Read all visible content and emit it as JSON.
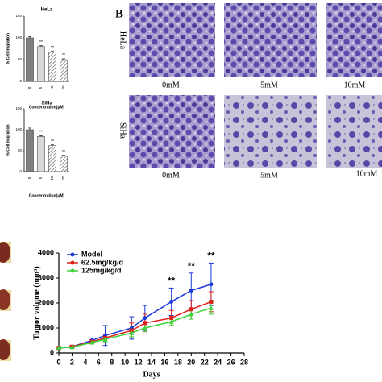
{
  "chart_data": [
    {
      "type": "bar",
      "title": "HeLa",
      "x_label": "Concentration(μM)",
      "y_label": "% Cell migration",
      "categories": [
        "0",
        "5",
        "10",
        "20"
      ],
      "values": [
        100,
        80,
        68,
        50
      ],
      "errors": [
        3,
        2,
        2,
        2
      ],
      "colors": [
        "#808080",
        "#d9d9d9",
        "#ffffff",
        "#ffffff"
      ],
      "hatched": [
        false,
        false,
        true,
        true
      ],
      "significance": [
        null,
        "**",
        "**",
        "**"
      ],
      "ylim": [
        0,
        150
      ],
      "yticks": [
        0,
        50,
        100,
        150
      ]
    },
    {
      "type": "bar",
      "title": "SiHa",
      "x_label": "Concentration(μM)",
      "y_label": "% Cell migration",
      "categories": [
        "0",
        "5",
        "10",
        "20"
      ],
      "values": [
        100,
        84,
        62,
        37
      ],
      "errors": [
        4,
        2,
        2,
        2
      ],
      "colors": [
        "#808080",
        "#d9d9d9",
        "#ffffff",
        "#ffffff"
      ],
      "hatched": [
        false,
        false,
        true,
        true
      ],
      "significance": [
        null,
        "**",
        "**",
        "**"
      ],
      "ylim": [
        0,
        150
      ],
      "yticks": [
        0,
        50,
        100,
        150
      ]
    },
    {
      "type": "line",
      "x_label": "Days",
      "y_label": "Tumor volume (mm³)",
      "x": [
        0,
        2,
        5,
        7,
        11,
        13,
        17,
        20,
        23
      ],
      "series": [
        {
          "name": "Model",
          "color": "#1a3ad6",
          "values": [
            200,
            250,
            500,
            700,
            1000,
            1400,
            2050,
            2500,
            2750
          ],
          "errors": [
            50,
            50,
            100,
            400,
            450,
            500,
            550,
            700,
            850
          ],
          "significance": [
            null,
            null,
            null,
            null,
            null,
            null,
            "**",
            "**",
            "**"
          ]
        },
        {
          "name": "62.5mg/kg/d",
          "color": "#e0201b",
          "values": [
            200,
            250,
            450,
            600,
            900,
            1200,
            1400,
            1750,
            2050
          ],
          "errors": [
            40,
            40,
            80,
            150,
            300,
            350,
            300,
            350,
            400
          ]
        },
        {
          "name": "125mg/kg/d",
          "color": "#3fd23a",
          "values": [
            200,
            230,
            420,
            550,
            800,
            1000,
            1250,
            1550,
            1800
          ],
          "errors": [
            30,
            30,
            60,
            100,
            150,
            150,
            150,
            200,
            250
          ]
        }
      ],
      "xlim": [
        0,
        28
      ],
      "xticks": [
        0,
        2,
        4,
        6,
        8,
        10,
        12,
        14,
        16,
        18,
        20,
        22,
        24,
        26,
        28
      ],
      "ylim": [
        0,
        4000
      ],
      "yticks": [
        0,
        1000,
        2000,
        3000,
        4000
      ],
      "legend": "upper left"
    }
  ],
  "images": {
    "panel_label": "B",
    "rows": [
      {
        "label": "HeLa",
        "captions": [
          "0mM",
          "5mM",
          "10mM"
        ]
      },
      {
        "label": "SiHa",
        "captions": [
          "0mM",
          "5mM",
          "10mM"
        ]
      }
    ]
  }
}
